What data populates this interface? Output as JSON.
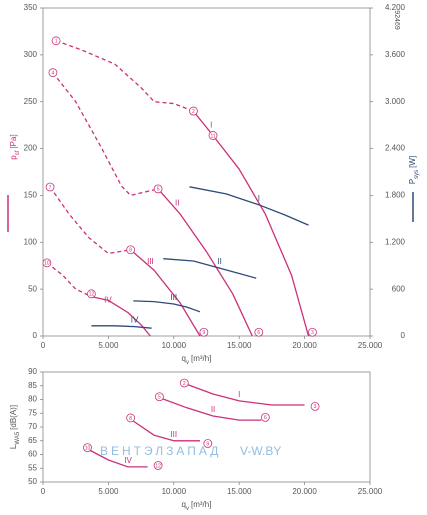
{
  "chart_data": [
    {
      "type": "line",
      "xlim": [
        0,
        25000
      ],
      "xticks": [
        0,
        {
          "value": 5000,
          "label": "5.000"
        },
        {
          "value": 10000,
          "label": "10.000"
        },
        {
          "value": 15000,
          "label": "15.000"
        },
        {
          "value": 20000,
          "label": "20.000"
        },
        {
          "value": 25000,
          "label": "25.000"
        }
      ],
      "ylim": [
        0,
        350
      ],
      "yticks": [
        0,
        50,
        100,
        150,
        200,
        250,
        300,
        350
      ],
      "y2lim": [
        0,
        4200
      ],
      "y2ticks": [
        0,
        600,
        {
          "value": 1200,
          "label": "1.200"
        },
        {
          "value": 1800,
          "label": "1.800"
        },
        {
          "value": 2400,
          "label": "2.400"
        },
        {
          "value": 3000,
          "label": "3.000"
        },
        {
          "value": 3600,
          "label": "3.600"
        },
        {
          "value": 4200,
          "label": "4.200"
        }
      ],
      "xlabel": {
        "text": "q",
        "sub": "v",
        "unit": "[m³/h]"
      },
      "ylabel": {
        "text": "p",
        "sub": "sf",
        "unit": "[Pa]",
        "color": "#cc2f7a"
      },
      "y2label": {
        "text": "P",
        "sub": "sys",
        "unit": "[W]",
        "color": "#2e4a78"
      },
      "code": "92469",
      "series": [
        {
          "name": "I",
          "color": "#cc2f7a",
          "stall_x": [
            1000,
            3000,
            5500,
            7500,
            8500,
            10000,
            11500
          ],
          "stall_values": [
            315,
            305,
            290,
            265,
            250,
            248,
            240
          ],
          "x": [
            11500,
            13000,
            15000,
            17000,
            19000,
            20300
          ],
          "values": [
            240,
            214,
            178,
            130,
            65,
            0
          ]
        },
        {
          "name": "II",
          "color": "#cc2f7a",
          "stall_x": [
            760,
            2500,
            4500,
            6000,
            6700,
            8800
          ],
          "stall_values": [
            281,
            250,
            200,
            160,
            150,
            157
          ],
          "x": [
            8800,
            10500,
            12500,
            14500,
            16000
          ],
          "values": [
            157,
            130,
            90,
            45,
            0
          ]
        },
        {
          "name": "III",
          "color": "#cc2f7a",
          "stall_x": [
            540,
            2000,
            3500,
            5000,
            6700
          ],
          "stall_values": [
            159,
            130,
            105,
            88,
            92
          ],
          "x": [
            6700,
            8500,
            10500,
            12000
          ],
          "values": [
            92,
            70,
            35,
            0
          ]
        },
        {
          "name": "IV",
          "color": "#cc2f7a",
          "stall_x": [
            300,
            1500,
            2500,
            3700
          ],
          "stall_values": [
            78,
            65,
            50,
            42
          ],
          "x": [
            3700,
            5000,
            6500,
            7500,
            8200
          ],
          "values": [
            42,
            38,
            25,
            12,
            0
          ]
        },
        {
          "name": "I",
          "color": "#2e4a78",
          "axis": "y2",
          "x": [
            11200,
            14000,
            16500,
            18500,
            20300
          ],
          "values": [
            1910,
            1820,
            1680,
            1550,
            1420
          ]
        },
        {
          "name": "II",
          "color": "#2e4a78",
          "axis": "y2",
          "x": [
            9200,
            11500,
            13500,
            15000,
            16300
          ],
          "values": [
            990,
            960,
            870,
            800,
            740
          ]
        },
        {
          "name": "III",
          "color": "#2e4a78",
          "axis": "y2",
          "x": [
            6900,
            8500,
            10000,
            11000,
            12000
          ],
          "values": [
            450,
            440,
            410,
            370,
            310
          ]
        },
        {
          "name": "IV",
          "color": "#2e4a78",
          "axis": "y2",
          "x": [
            3700,
            5500,
            7000,
            8300
          ],
          "values": [
            130,
            130,
            120,
            100
          ]
        }
      ],
      "markers": [
        {
          "label": "1",
          "x": 1000,
          "y": 315
        },
        {
          "label": "2",
          "x": 11500,
          "y": 240
        },
        {
          "label": "11",
          "x": 13000,
          "y": 214
        },
        {
          "label": "3",
          "x": 20600,
          "y": 4
        },
        {
          "label": "4",
          "x": 760,
          "y": 281
        },
        {
          "label": "5",
          "x": 8800,
          "y": 157
        },
        {
          "label": "6",
          "x": 16500,
          "y": 4
        },
        {
          "label": "7",
          "x": 540,
          "y": 159
        },
        {
          "label": "8",
          "x": 6700,
          "y": 92
        },
        {
          "label": "9",
          "x": 12300,
          "y": 4
        },
        {
          "label": "10",
          "x": 300,
          "y": 78
        },
        {
          "label": "12",
          "x": 3700,
          "y": 45
        }
      ]
    },
    {
      "type": "line",
      "xlim": [
        0,
        25000
      ],
      "xticks": [
        0,
        {
          "value": 5000,
          "label": "5.000"
        },
        {
          "value": 10000,
          "label": "10.000"
        },
        {
          "value": 15000,
          "label": "15.000"
        },
        {
          "value": 20000,
          "label": "20.000"
        },
        {
          "value": 25000,
          "label": "25.000"
        }
      ],
      "ylim": [
        50,
        90
      ],
      "yticks": [
        50,
        55,
        60,
        65,
        70,
        75,
        80,
        85,
        90
      ],
      "xlabel": {
        "text": "q",
        "sub": "v",
        "unit": "[m³/h]"
      },
      "ylabel": {
        "text": "L",
        "sub": "WA5",
        "unit": "[dB(A)]"
      },
      "series": [
        {
          "name": "I",
          "color": "#cc2f7a",
          "x": [
            11000,
            13000,
            15000,
            17500,
            20000
          ],
          "values": [
            85.5,
            82,
            79.5,
            78,
            78
          ]
        },
        {
          "name": "II",
          "color": "#cc2f7a",
          "x": [
            9000,
            11000,
            13000,
            15000,
            16700
          ],
          "values": [
            80.5,
            77,
            74,
            72.5,
            72.5
          ]
        },
        {
          "name": "III",
          "color": "#cc2f7a",
          "x": [
            6800,
            8500,
            10000,
            12000
          ],
          "values": [
            72.5,
            67,
            65,
            65
          ]
        },
        {
          "name": "IV",
          "color": "#cc2f7a",
          "x": [
            3400,
            5000,
            6500,
            8000
          ],
          "values": [
            62,
            58,
            55.5,
            55.5
          ]
        }
      ],
      "markers": [
        {
          "label": "2",
          "x": 10800,
          "y": 86
        },
        {
          "label": "3",
          "x": 20800,
          "y": 77.5
        },
        {
          "label": "5",
          "x": 8900,
          "y": 81
        },
        {
          "label": "6",
          "x": 17000,
          "y": 73.5
        },
        {
          "label": "8",
          "x": 6700,
          "y": 73.3
        },
        {
          "label": "9",
          "x": 12600,
          "y": 64
        },
        {
          "label": "10",
          "x": 3400,
          "y": 62.5
        },
        {
          "label": "12",
          "x": 8800,
          "y": 56
        }
      ]
    }
  ],
  "watermark": {
    "brand": "ВЕНТЭЛЗАПАД",
    "site": "V-W.BY"
  }
}
